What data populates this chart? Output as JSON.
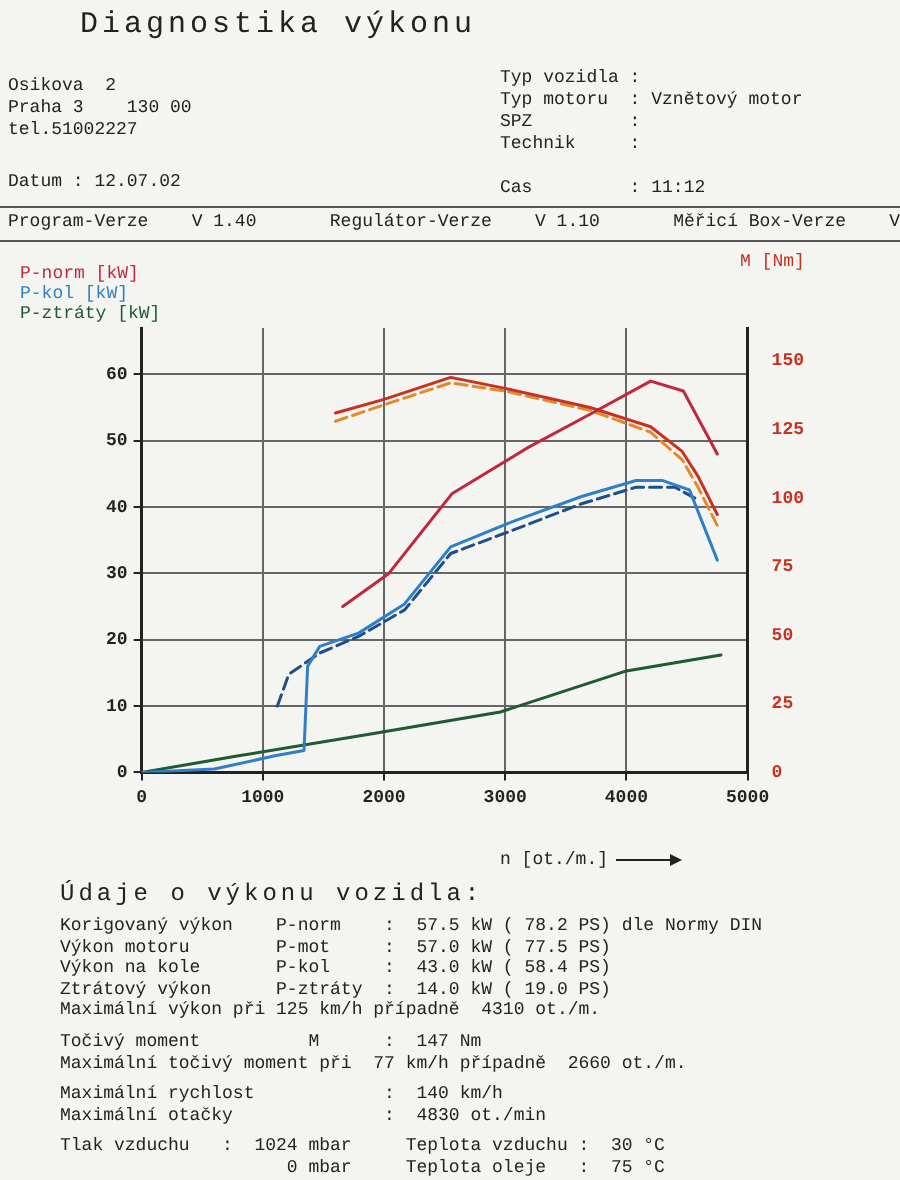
{
  "chart_data": {
    "type": "line",
    "title": "Diagnostika výkonu",
    "subtitle": "Údaje o výkonu vozidla:",
    "xlabel": "n [ot./m.]",
    "xlim": [
      0,
      5000
    ],
    "xticks": [
      0,
      1000,
      2000,
      3000,
      4000,
      5000
    ],
    "ylim": [
      0,
      67
    ],
    "yticks": [
      0,
      10,
      20,
      30,
      40,
      50,
      60
    ],
    "y2lim": [
      0,
      162
    ],
    "y2ticks": [
      0,
      25,
      50,
      75,
      100,
      125,
      150
    ],
    "grid": true,
    "legend": "top left",
    "marker": "none",
    "series": [
      {
        "name": "P-norm [kW]",
        "color": "#c0283c",
        "line_style": "solid",
        "x": [
          1660,
          2040,
          2560,
          3190,
          3700,
          4200,
          4470,
          4750
        ],
        "values": [
          25,
          30,
          42,
          49,
          54,
          59,
          57.5,
          48
        ]
      },
      {
        "name": "P-kol [kW]",
        "color": "#2f7fc8",
        "line_style": "solid",
        "x": [
          0,
          600,
          1100,
          1340,
          1370,
          1470,
          1790,
          2170,
          2550,
          3060,
          3630,
          4080,
          4300,
          4520,
          4750
        ],
        "values": [
          0,
          0.5,
          2.5,
          3.3,
          16,
          19,
          21,
          25.4,
          34,
          37.8,
          41.6,
          44,
          44,
          42.6,
          32
        ]
      },
      {
        "color": "#1f4f8a",
        "line_style": "dashed",
        "x": [
          1120,
          1215,
          1470,
          1790,
          2170,
          2550,
          3060,
          3630,
          4080,
          4400,
          4600
        ],
        "values": [
          10,
          14.8,
          18,
          20.5,
          24.5,
          33,
          36.5,
          40.5,
          43,
          43,
          41
        ]
      },
      {
        "name": "P-ztráty [kW]",
        "color": "#1e5a32",
        "line_style": "solid",
        "x": [
          0,
          800,
          1890,
          2960,
          4000,
          4780
        ],
        "values": [
          0,
          2.5,
          5.8,
          9.1,
          15.3,
          17.7
        ]
      },
      {
        "name": "M [Nm]",
        "color": "#c83020",
        "line_style": "solid",
        "axis": "y2",
        "x": [
          1600,
          2000,
          2550,
          3000,
          3700,
          4200,
          4460,
          4590,
          4750
        ],
        "values": [
          131,
          136,
          144,
          140,
          133,
          126,
          117,
          108,
          94
        ]
      },
      {
        "color": "#e08a2a",
        "line_style": "dashed",
        "axis": "y2",
        "x": [
          1600,
          2000,
          2550,
          3000,
          3700,
          4200,
          4460,
          4590,
          4750
        ],
        "values": [
          128,
          134,
          142,
          139,
          132,
          124,
          114,
          104,
          90
        ]
      }
    ],
    "annotations": [
      "Osikova  2",
      "Praha 3    130 00",
      "tel.51002227",
      "Datum : 12.07.02",
      "Typ vozidla :",
      "Typ motoru  : Vznětový motor",
      "SPZ         :",
      "Technik     :",
      "Cas         : 11:12",
      "Program-Verze    V 1.40",
      "Regulátor-Verze    V 1.10",
      "Měřicí Box-Verze    V",
      "Korigovaný výkon    P-norm    :  57.5 kW ( 78.2 PS) dle Normy DIN",
      "Výkon motoru        P-mot     :  57.0 kW ( 77.5 PS)",
      "Výkon na kole       P-kol     :  43.0 kW ( 58.4 PS)",
      "Ztrátový výkon      P-ztráty  :  14.0 kW ( 19.0 PS)",
      "Maximální výkon při 125 km/h případně  4310 ot./m.",
      "Točivý moment          M      :  147 Nm",
      "Maximální točivý moment při  77 km/h případně  2660 ot./m.",
      "Maximální rychlost            :  140 km/h",
      "Maximální otačky              :  4830 ot./min",
      "Tlak vzduchu   :  1024 mbar     Teplota vzduchu :  30 °C",
      "                     0 mbar     Teplota oleje   :  75 °C"
    ]
  }
}
